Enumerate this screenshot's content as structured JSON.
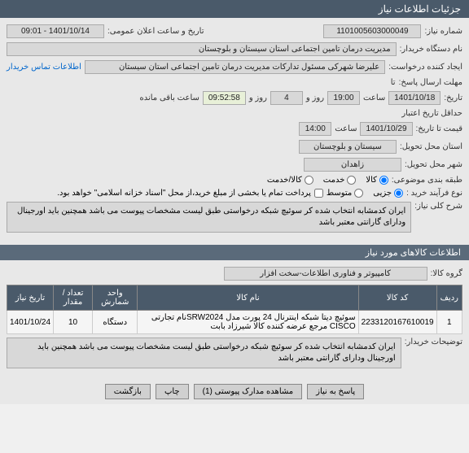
{
  "header": {
    "title": "جزئیات اطلاعات نیاز"
  },
  "fields": {
    "needNumber": {
      "label": "شماره نیاز:",
      "value": "1101005603000049"
    },
    "publicDateTime": {
      "label": "تاریخ و ساعت اعلان عمومی:",
      "value": "1401/10/14 - 09:01"
    },
    "buyerOrg": {
      "label": "نام دستگاه خریدار:",
      "value": "مدیریت درمان تامین اجتماعی استان سیستان و بلوچستان"
    },
    "requestCreator": {
      "label": "ایجاد کننده درخواست:",
      "value": "علیرضا شهرکی مسئول تدارکات مدیریت درمان تامین اجتماعی استان سیستان"
    },
    "contactLink": "اطلاعات تماس خریدار",
    "responseDeadline": {
      "label": "مهلت ارسال پاسخ:",
      "value": "تا"
    },
    "dateTime1": {
      "label": "تاریخ:",
      "date": "1401/10/18",
      "timeLabel": "ساعت",
      "time": "19:00",
      "dayLabel": "روز و",
      "days": "4",
      "timer": "09:52:58",
      "remainLabel": "ساعت باقی مانده"
    },
    "deadlineLabel": "حداقل تاریخ اعتبار",
    "priceLabel": "قیمت تا تاریخ:",
    "dateTime2": {
      "date": "1401/10/29",
      "timeLabel": "ساعت",
      "time": "14:00"
    },
    "province": {
      "label": "استان محل تحویل:",
      "value": "سیستان و بلوچستان"
    },
    "city": {
      "label": "شهر محل تحویل:",
      "value": "زاهدان"
    },
    "category": {
      "label": "طبقه بندی موضوعی:"
    },
    "categoryOptions": {
      "goods": "کالا",
      "service": "خدمت",
      "goodsService": "کالا/خدمت"
    },
    "purchaseType": {
      "label": "نوع فرآیند خرید :"
    },
    "purchaseOptions": {
      "partial": "جزیی",
      "medium": "متوسط"
    },
    "paymentNote": "پرداخت تمام یا بخشی از مبلغ خرید،از محل \"اسناد خزانه اسلامی\" خواهد بود.",
    "generalDesc": {
      "label": "شرح کلی نیاز:",
      "value": "ایران کدمشابه انتخاب شده کر سوئیچ شبکه درخواستی طبق لیست مشخصات پیوست می باشد همچنین باید اورجینال ودارای گارانتی معتبر باشد"
    },
    "goodsInfoTitle": "اطلاعات کالاهای مورد نیاز",
    "goodsGroup": {
      "label": "گروه کالا:",
      "value": "کامپیوتر و فناوری اطلاعات-سخت افزار"
    },
    "buyerNotes": {
      "label": "توضیحات خریدار:",
      "value": "ایران کدمشابه انتخاب شده کر سوئیچ شبکه درخواستی طبق لیست مشخصات پیوست می باشد همچنین باید اورجینال ودارای گارانتی معتبر باشد"
    }
  },
  "table": {
    "headers": {
      "row": "ردیف",
      "code": "کد کالا",
      "name": "نام کالا",
      "unit": "واحد شمارش",
      "qty": "تعداد / مقدار",
      "date": "تاریخ نیاز"
    },
    "rows": [
      {
        "row": "1",
        "code": "2233120167610019",
        "name": "سوئیچ دیتا شبکه اینترنال 24 پورت مدل SRW2024نام تجارتی CISCO مرجع عرضه کننده کالا شیرزاد بابت",
        "unit": "دستگاه",
        "qty": "10",
        "date": "1401/10/24"
      }
    ]
  },
  "footer": {
    "reply": "پاسخ به نیاز",
    "attachments": "مشاهده مدارک پیوستی (1)",
    "print": "چاپ",
    "back": "بازگشت"
  }
}
